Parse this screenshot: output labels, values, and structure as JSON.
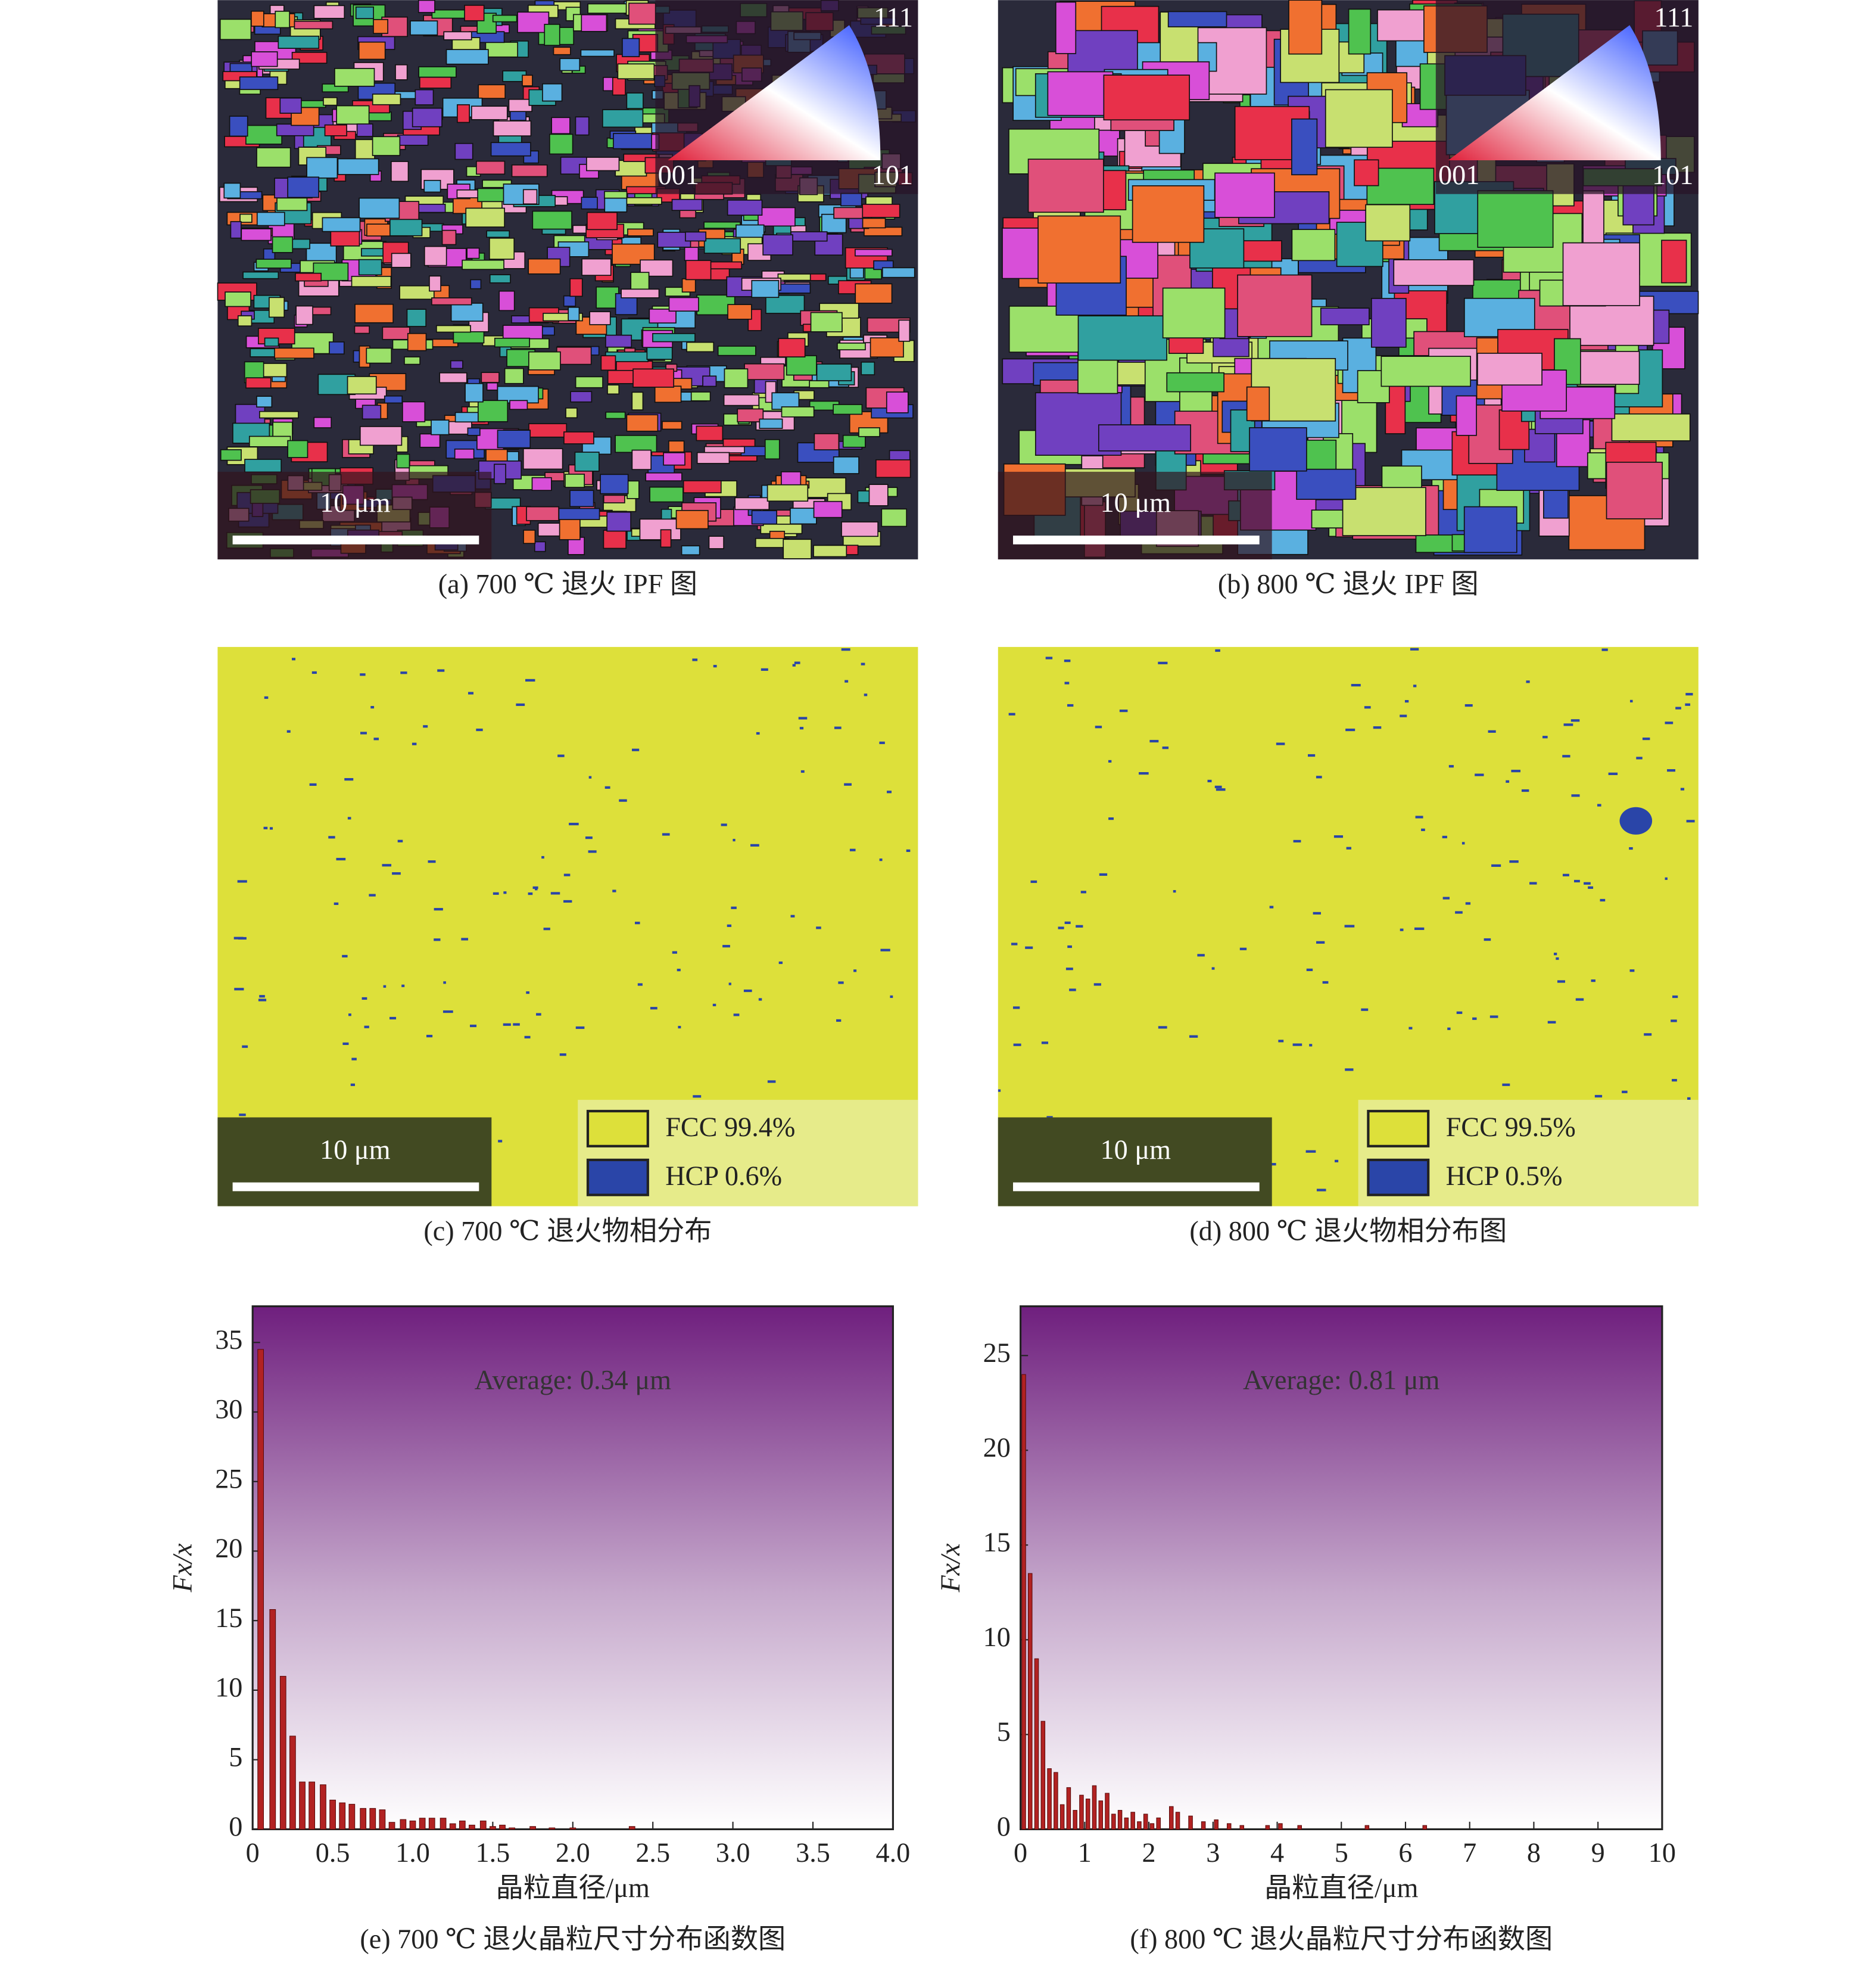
{
  "panels": [
    {
      "caption": "(a) 700 ℃ 退火 IPF 图",
      "scale_bar": "10 μm",
      "ipf_key": [
        "111",
        "001",
        "101"
      ]
    },
    {
      "caption": "(b) 800 ℃ 退火 IPF 图",
      "scale_bar": "10 μm",
      "ipf_key": [
        "111",
        "001",
        "101"
      ]
    },
    {
      "caption": "(c) 700 ℃ 退火物相分布",
      "scale_bar": "10 μm",
      "legend": [
        "FCC 99.4%",
        "HCP 0.6%"
      ]
    },
    {
      "caption": "(d) 800 ℃ 退火物相分布图",
      "scale_bar": "10 μm",
      "legend": [
        "FCC 99.5%",
        "HCP 0.5%"
      ]
    }
  ],
  "chart_data": [
    {
      "type": "bar",
      "caption": "(e) 700 ℃ 退火晶粒尺寸分布函数图",
      "annotation": "Average: 0.34 μm",
      "xlabel": "晶粒直径/μm",
      "ylabel": "Fx/x",
      "color": "#b22222",
      "x": [
        0.05,
        0.125,
        0.19,
        0.25,
        0.31,
        0.37,
        0.44,
        0.5,
        0.56,
        0.62,
        0.69,
        0.75,
        0.81,
        0.87,
        0.94,
        1.0,
        1.06,
        1.12,
        1.19,
        1.25,
        1.31,
        1.37,
        1.44,
        1.5,
        1.56,
        1.62,
        1.75,
        1.87,
        2.0,
        2.37
      ],
      "values": [
        34.5,
        15.8,
        11,
        6.7,
        3.4,
        3.4,
        3.2,
        2.1,
        1.9,
        1.8,
        1.5,
        1.5,
        1.4,
        0.5,
        0.7,
        0.6,
        0.8,
        0.8,
        0.8,
        0.4,
        0.6,
        0.3,
        0.6,
        0.2,
        0.3,
        0.1,
        0.2,
        0.1,
        0.1,
        0.2
      ],
      "xlim": [
        0,
        4
      ],
      "xticks": [
        0,
        0.5,
        {
          "value": 1,
          "label": "1.0"
        },
        1.5,
        {
          "value": 2,
          "label": "2.0"
        },
        2.5,
        {
          "value": 3,
          "label": "3.0"
        },
        3.5,
        {
          "value": 4,
          "label": "4.0"
        }
      ],
      "ylim": [
        0,
        37.6
      ],
      "yticks": [
        0,
        5,
        10,
        15,
        20,
        25,
        30,
        35
      ]
    },
    {
      "type": "bar",
      "caption": "(f) 800 ℃ 退火晶粒尺寸分布函数图",
      "annotation": "Average: 0.81 μm",
      "xlabel": "晶粒直径/μm",
      "ylabel": "Fx/x",
      "color": "#b22222",
      "x": [
        0.05,
        0.15,
        0.25,
        0.35,
        0.45,
        0.55,
        0.65,
        0.75,
        0.85,
        0.95,
        1.05,
        1.15,
        1.25,
        1.35,
        1.45,
        1.55,
        1.65,
        1.75,
        1.85,
        1.95,
        2.05,
        2.15,
        2.35,
        2.45,
        2.65,
        2.85,
        3.05,
        3.25,
        3.45,
        3.85,
        4.05,
        4.35,
        5.4,
        6.3
      ],
      "values": [
        24,
        13.5,
        9,
        5.7,
        3.2,
        3.0,
        1.3,
        2.2,
        1.0,
        1.8,
        1.6,
        2.3,
        1.5,
        1.9,
        0.8,
        1.0,
        0.6,
        0.9,
        0.4,
        0.8,
        0.3,
        0.6,
        1.2,
        0.9,
        0.7,
        0.4,
        0.5,
        0.3,
        0.2,
        0.2,
        0.3,
        0.2,
        0.2,
        0.2
      ],
      "xlim": [
        0,
        10
      ],
      "xticks": [
        0,
        1,
        2,
        3,
        4,
        5,
        6,
        7,
        8,
        9,
        10
      ],
      "ylim": [
        0,
        27.6
      ],
      "yticks": [
        0,
        5,
        10,
        15,
        20,
        25
      ]
    }
  ]
}
